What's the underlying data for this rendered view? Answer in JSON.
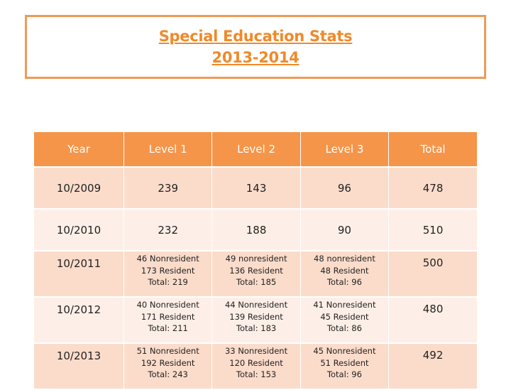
{
  "title": {
    "line1": "Special Education Stats",
    "line2": "2013-2014"
  },
  "colors": {
    "title_text": "#ef8a2a",
    "title_border": "#ef9a56",
    "header_bg": "#f5954a",
    "row_dark": "#fbdccb",
    "row_light": "#fdefe7"
  },
  "table": {
    "headers": [
      "Year",
      "Level 1",
      "Level 2",
      "Level 3",
      "Total"
    ],
    "rows": [
      {
        "year": "10/2009",
        "level1": [
          "239"
        ],
        "level2": [
          "143"
        ],
        "level3": [
          "96"
        ],
        "total": "478"
      },
      {
        "year": "10/2010",
        "level1": [
          "232"
        ],
        "level2": [
          "188"
        ],
        "level3": [
          "90"
        ],
        "total": "510"
      },
      {
        "year": "10/2011",
        "level1": [
          "46 Nonresident",
          "173 Resident",
          "Total: 219"
        ],
        "level2": [
          "49 nonresident",
          "136 Resident",
          "Total: 185"
        ],
        "level3": [
          "48 nonresident",
          "48 Resident",
          "Total:  96"
        ],
        "total": "500"
      },
      {
        "year": "10/2012",
        "level1": [
          "40 Nonresident",
          "171 Resident",
          "Total:  211"
        ],
        "level2": [
          "44 Nonresident",
          "139 Resident",
          "Total:  183"
        ],
        "level3": [
          "41 Nonresident",
          "45 Resident",
          "Total:  86"
        ],
        "total": "480"
      },
      {
        "year": "10/2013",
        "level1": [
          "51 Nonresident",
          "192 Resident",
          "Total: 243"
        ],
        "level2": [
          "33 Nonresident",
          "120 Resident",
          "Total:  153"
        ],
        "level3": [
          "45 Nonresident",
          "51 Resident",
          "Total:  96"
        ],
        "total": "492"
      }
    ]
  }
}
